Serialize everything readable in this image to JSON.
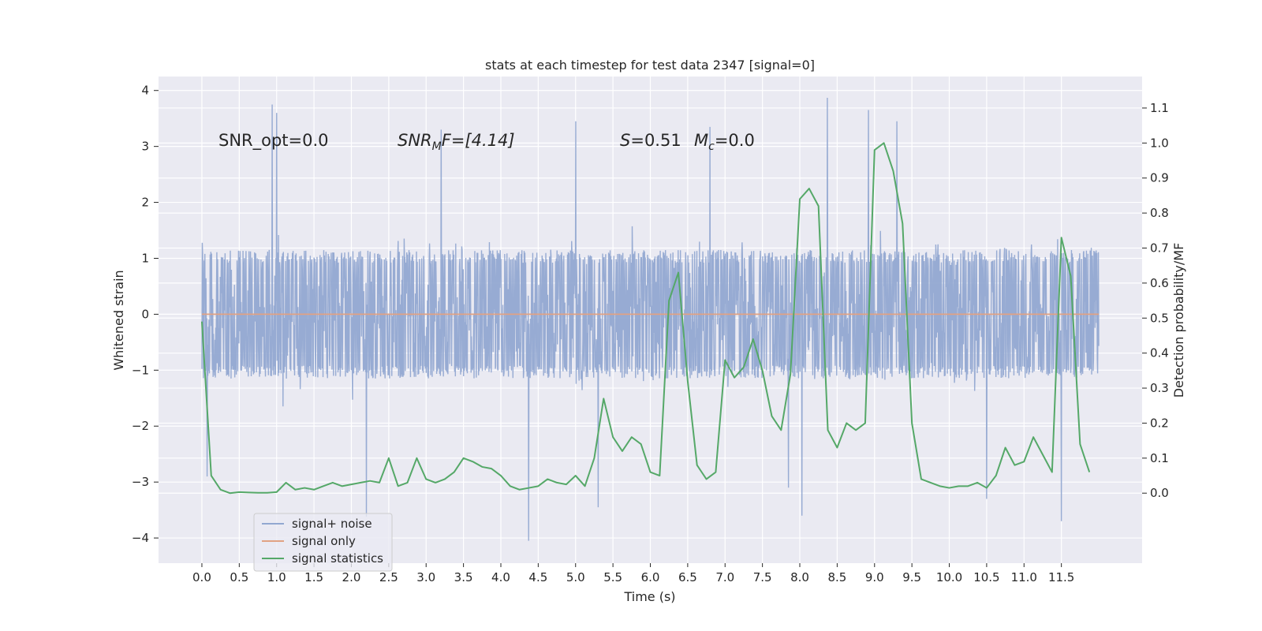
{
  "chart_data": {
    "type": "line",
    "title": "stats at each timestep for test data 2347 [signal=0]",
    "xlabel": "Time (s)",
    "ylabel_left": "Whitened strain",
    "ylabel_right": "Detection probability/MF",
    "xlim": [
      -0.58,
      12.58
    ],
    "ylim_left": [
      -4.45,
      4.25
    ],
    "ylim_right": [
      -0.2,
      1.19
    ],
    "x_ticks": [
      0.0,
      0.5,
      1.0,
      1.5,
      2.0,
      2.5,
      3.0,
      3.5,
      4.0,
      4.5,
      5.0,
      5.5,
      6.0,
      6.5,
      7.0,
      7.5,
      8.0,
      8.5,
      9.0,
      9.5,
      10.0,
      10.5,
      11.0,
      11.5
    ],
    "x_tick_labels": [
      "0.0",
      "0.5",
      "1.0",
      "1.5",
      "2.0",
      "2.5",
      "3.0",
      "3.5",
      "4.0",
      "4.5",
      "5.0",
      "5.5",
      "6.0",
      "6.5",
      "7.0",
      "7.5",
      "8.0",
      "8.5",
      "9.0",
      "9.5",
      "10.0",
      "10.5",
      "11.0",
      "11.5"
    ],
    "y_left_ticks": [
      -4,
      -3,
      -2,
      -1,
      0,
      1,
      2,
      3,
      4
    ],
    "y_left_tick_labels": [
      "−4",
      "−3",
      "−2",
      "−1",
      "0",
      "1",
      "2",
      "3",
      "4"
    ],
    "y_right_ticks": [
      0.0,
      0.1,
      0.2,
      0.3,
      0.4,
      0.5,
      0.6,
      0.7,
      0.8,
      0.9,
      1.0,
      1.1
    ],
    "y_right_tick_labels": [
      "0.0",
      "0.1",
      "0.2",
      "0.3",
      "0.4",
      "0.5",
      "0.6",
      "0.7",
      "0.8",
      "0.9",
      "1.0",
      "1.1"
    ],
    "grid": true,
    "legend_position": "lower-left",
    "annotations": [
      {
        "text": "SNR_opt=0.0",
        "x": 0.2,
        "y": 3.05
      },
      {
        "text_main": "SNR",
        "text_sub": "M",
        "text_rest": "F=[4.14]",
        "x": 2.6,
        "y": 3.05
      },
      {
        "text_main": "S",
        "text_rest": "=0.51",
        "x": 5.6,
        "y": 3.05
      },
      {
        "text_main": "M",
        "text_sub": "c",
        "text_rest": "=0.0",
        "x": 6.6,
        "y": 3.05
      }
    ],
    "series": [
      {
        "name": "signal+ noise",
        "color": "#92a8d1",
        "axis": "left",
        "x_range": [
          0.0,
          12.0
        ],
        "core_amplitude": 1.15,
        "envelope_upper": 2.2,
        "envelope_lower": -2.3,
        "extreme_peaks": [
          {
            "x": 0.94,
            "y": 3.75
          },
          {
            "x": 1.0,
            "y": 3.6
          },
          {
            "x": 8.37,
            "y": 3.87
          },
          {
            "x": 8.92,
            "y": 3.65
          },
          {
            "x": 5.0,
            "y": 3.45
          },
          {
            "x": 6.8,
            "y": 3.35
          },
          {
            "x": 2.2,
            "y": -3.62
          },
          {
            "x": 4.37,
            "y": -4.05
          },
          {
            "x": 11.5,
            "y": -3.7
          },
          {
            "x": 8.03,
            "y": -3.6
          },
          {
            "x": 0.07,
            "y": -2.9
          },
          {
            "x": 9.3,
            "y": 3.45
          },
          {
            "x": 3.2,
            "y": 3.3
          },
          {
            "x": 7.85,
            "y": -3.1
          },
          {
            "x": 10.5,
            "y": -3.3
          },
          {
            "x": 5.3,
            "y": -3.45
          }
        ]
      },
      {
        "name": "signal only",
        "color": "#e1a283",
        "axis": "left",
        "x": [
          0.0,
          12.0
        ],
        "y": [
          0.0,
          0.0
        ]
      },
      {
        "name": "signal statistics",
        "color": "#55a868",
        "axis": "right",
        "x": [
          0.0,
          0.125,
          0.25,
          0.375,
          0.5,
          0.625,
          0.75,
          0.875,
          1.0,
          1.125,
          1.25,
          1.375,
          1.5,
          1.625,
          1.75,
          1.875,
          2.0,
          2.125,
          2.25,
          2.375,
          2.5,
          2.625,
          2.75,
          2.875,
          3.0,
          3.125,
          3.25,
          3.375,
          3.5,
          3.625,
          3.75,
          3.875,
          4.0,
          4.125,
          4.25,
          4.375,
          4.5,
          4.625,
          4.75,
          4.875,
          5.0,
          5.125,
          5.25,
          5.375,
          5.5,
          5.625,
          5.75,
          5.875,
          6.0,
          6.125,
          6.25,
          6.375,
          6.5,
          6.625,
          6.75,
          6.875,
          7.0,
          7.125,
          7.25,
          7.375,
          7.5,
          7.625,
          7.75,
          7.875,
          8.0,
          8.125,
          8.25,
          8.375,
          8.5,
          8.625,
          8.75,
          8.875,
          9.0,
          9.125,
          9.25,
          9.375,
          9.5,
          9.625,
          9.75,
          9.875,
          10.0,
          10.125,
          10.25,
          10.375,
          10.5,
          10.625,
          10.75,
          10.875,
          11.0,
          11.125,
          11.25,
          11.375,
          11.5,
          11.625,
          11.75,
          11.875
        ],
        "y": [
          0.49,
          0.05,
          0.01,
          0.0,
          0.003,
          0.002,
          0.001,
          0.001,
          0.003,
          0.03,
          0.01,
          0.015,
          0.01,
          0.02,
          0.03,
          0.02,
          0.025,
          0.03,
          0.035,
          0.03,
          0.1,
          0.02,
          0.03,
          0.1,
          0.04,
          0.03,
          0.04,
          0.06,
          0.1,
          0.09,
          0.075,
          0.07,
          0.05,
          0.02,
          0.01,
          0.015,
          0.02,
          0.04,
          0.03,
          0.025,
          0.05,
          0.02,
          0.1,
          0.27,
          0.16,
          0.12,
          0.16,
          0.14,
          0.06,
          0.05,
          0.55,
          0.63,
          0.32,
          0.08,
          0.04,
          0.06,
          0.38,
          0.33,
          0.36,
          0.44,
          0.35,
          0.22,
          0.18,
          0.34,
          0.84,
          0.87,
          0.82,
          0.18,
          0.13,
          0.2,
          0.18,
          0.2,
          0.98,
          1.0,
          0.92,
          0.77,
          0.2,
          0.04,
          0.03,
          0.02,
          0.015,
          0.02,
          0.02,
          0.03,
          0.015,
          0.05,
          0.13,
          0.08,
          0.09,
          0.16,
          0.11,
          0.06,
          0.73,
          0.62,
          0.14,
          0.06
        ]
      }
    ]
  }
}
